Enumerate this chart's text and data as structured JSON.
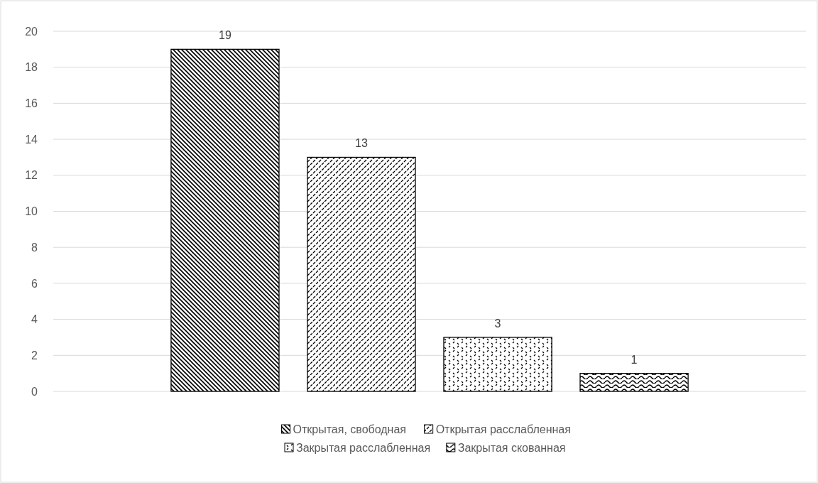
{
  "chart_data": {
    "type": "bar",
    "categories": [
      null
    ],
    "series": [
      {
        "name": "Открытая, свободная",
        "color": "#000000",
        "values": [
          19
        ]
      },
      {
        "name": "Открытая расслабленная",
        "color": "#000000",
        "values": [
          13
        ]
      },
      {
        "name": "Закрытая расслабленная",
        "color": "#000000",
        "values": [
          3
        ]
      },
      {
        "name": "Закрытая скованная",
        "color": "#000000",
        "values": [
          1
        ]
      }
    ],
    "ylim": [
      0,
      20
    ],
    "yticks": [
      0,
      2,
      4,
      6,
      8,
      10,
      12,
      14,
      16,
      18,
      20
    ],
    "grid": "y",
    "data_labels": true,
    "legend": "bottom"
  }
}
